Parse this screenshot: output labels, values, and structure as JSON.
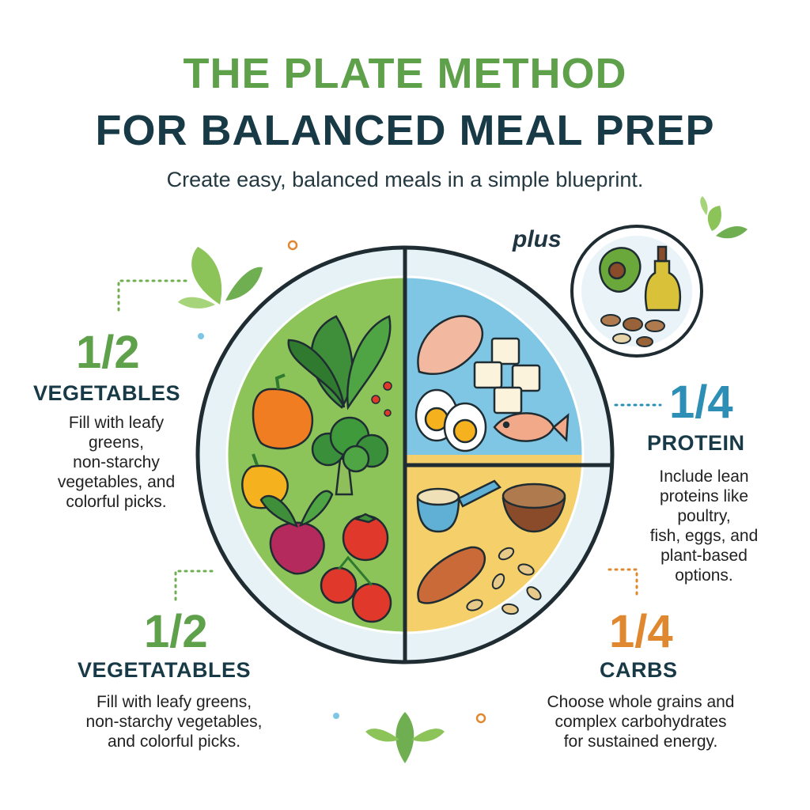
{
  "title": {
    "line1": "THE PLATE METHOD",
    "line2": "FOR BALANCED MEAL PREP"
  },
  "subtitle": "Create easy, balanced meals in a simple blueprint.",
  "sections": {
    "veg_top": {
      "fraction": "1/2",
      "heading": "VEGETABLES",
      "lines": [
        "Fill with leafy",
        "greens,",
        "non-starchy",
        "vegetables, and",
        "colorful picks."
      ]
    },
    "veg_bottom": {
      "fraction": "1/2",
      "heading": "VEGETATABLES",
      "lines": [
        "Fill with leafy greens,",
        "non-starchy vegetables,",
        "and colorful picks."
      ]
    },
    "protein": {
      "fraction": "1/4",
      "heading": "PROTEIN",
      "lines": [
        "Include lean",
        "proteins like",
        "poultry,",
        "fish, eggs, and",
        "plant-based",
        "options."
      ]
    },
    "carbs": {
      "fraction": "1/4",
      "heading": "CARBS",
      "lines": [
        "Choose whole grains and",
        "complex carbohydrates",
        "for sustained energy."
      ]
    }
  },
  "plus_label": "plus",
  "colors": {
    "green_accent": "#5fa14b",
    "navy": "#183a47",
    "protein_blue": "#2d8fb5",
    "carbs_orange": "#e0882f",
    "veg_fill": "#8cc45a",
    "protein_fill": "#7fc6e4",
    "carbs_fill": "#f5cf6a"
  },
  "icons": [
    "spinach-icon",
    "bell-pepper-icon",
    "broccoli-icon",
    "beet-icon",
    "tomato-icon",
    "chicken-icon",
    "tofu-icon",
    "egg-icon",
    "fish-icon",
    "quinoa-icon",
    "grain-bowl-icon",
    "sweet-potato-icon",
    "oat-icon",
    "avocado-icon",
    "olive-oil-icon",
    "nuts-icon",
    "leaf-icon"
  ]
}
